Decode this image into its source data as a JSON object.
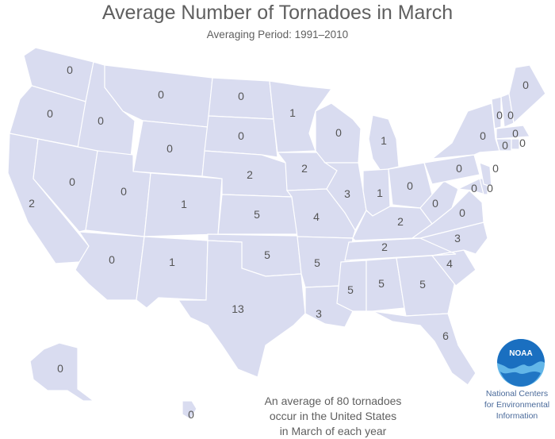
{
  "title": "Average Number of Tornadoes in March",
  "subtitle": "Averaging Period:  1991–2010",
  "note_lines": [
    "An average of 80 tornadoes",
    "occur in the United States",
    "in March of each year"
  ],
  "agency": {
    "logo_text": "NOAA",
    "lines": [
      "National Centers",
      "for Environmental",
      "Information"
    ]
  },
  "colors": {
    "land": "#d9dcf0",
    "border": "#ffffff",
    "logo_blue": "#1a6fc0",
    "logo_light": "#62b6e8"
  },
  "states": [
    {
      "id": "WA",
      "label": "0"
    },
    {
      "id": "OR",
      "label": "0"
    },
    {
      "id": "CA",
      "label": "2"
    },
    {
      "id": "ID",
      "label": "0"
    },
    {
      "id": "NV",
      "label": "0"
    },
    {
      "id": "MT",
      "label": "0"
    },
    {
      "id": "WY",
      "label": "0"
    },
    {
      "id": "UT",
      "label": "0"
    },
    {
      "id": "AZ",
      "label": "0"
    },
    {
      "id": "CO",
      "label": "1"
    },
    {
      "id": "NM",
      "label": "1"
    },
    {
      "id": "ND",
      "label": "0"
    },
    {
      "id": "SD",
      "label": "0"
    },
    {
      "id": "NE",
      "label": "2"
    },
    {
      "id": "KS",
      "label": "5"
    },
    {
      "id": "OK",
      "label": "5"
    },
    {
      "id": "TX",
      "label": "13"
    },
    {
      "id": "MN",
      "label": "1"
    },
    {
      "id": "IA",
      "label": "2"
    },
    {
      "id": "MO",
      "label": "4"
    },
    {
      "id": "AR",
      "label": "5"
    },
    {
      "id": "LA",
      "label": "3"
    },
    {
      "id": "WI",
      "label": "0"
    },
    {
      "id": "IL",
      "label": "3"
    },
    {
      "id": "MI",
      "label": "1"
    },
    {
      "id": "IN",
      "label": "1"
    },
    {
      "id": "OH",
      "label": "0"
    },
    {
      "id": "KY",
      "label": "2"
    },
    {
      "id": "TN",
      "label": "2"
    },
    {
      "id": "MS",
      "label": "5"
    },
    {
      "id": "AL",
      "label": "5"
    },
    {
      "id": "GA",
      "label": "5"
    },
    {
      "id": "FL",
      "label": "6"
    },
    {
      "id": "SC",
      "label": "4"
    },
    {
      "id": "NC",
      "label": "3"
    },
    {
      "id": "VA",
      "label": "0"
    },
    {
      "id": "WV",
      "label": "0"
    },
    {
      "id": "PA",
      "label": "0"
    },
    {
      "id": "NY",
      "label": "0"
    },
    {
      "id": "MD",
      "label": "0"
    },
    {
      "id": "DE",
      "label": "0"
    },
    {
      "id": "NJ",
      "label": "0"
    },
    {
      "id": "VT",
      "label": "0"
    },
    {
      "id": "NH",
      "label": "0"
    },
    {
      "id": "ME",
      "label": "0"
    },
    {
      "id": "MA",
      "label": "0"
    },
    {
      "id": "CT",
      "label": "0"
    },
    {
      "id": "RI",
      "label": "0"
    },
    {
      "id": "AK",
      "label": "0"
    },
    {
      "id": "HI",
      "label": "0"
    }
  ]
}
